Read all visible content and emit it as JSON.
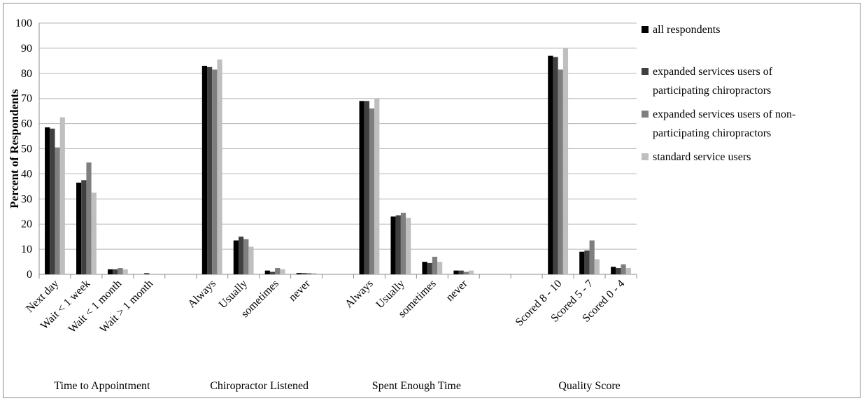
{
  "chart_data": {
    "type": "bar",
    "ylabel": "Percent of Respondents",
    "ylim": [
      0,
      100
    ],
    "yticks": [
      0,
      10,
      20,
      30,
      40,
      50,
      60,
      70,
      80,
      90,
      100
    ],
    "grid": true,
    "legend_position": "right",
    "categories": [
      "Next day",
      "Wait < 1 week",
      "Wait < 1 month",
      "Wait > 1 month",
      "",
      "Always",
      "Usually",
      "sometimes",
      "never",
      "",
      "Always",
      "Usually",
      "sometimes",
      "never",
      "",
      "",
      "Scored 8 - 10",
      "Scored 5 - 7",
      "Scored 0 - 4"
    ],
    "groups": [
      {
        "label": "Time to Appointment",
        "start": 0,
        "end": 3
      },
      {
        "label": "Chiropractor Listened",
        "start": 5,
        "end": 8
      },
      {
        "label": "Spent Enough Time",
        "start": 10,
        "end": 13
      },
      {
        "label": "Quality Score",
        "start": 16,
        "end": 18
      }
    ],
    "series": [
      {
        "name": "all respondents",
        "color": "#000000",
        "values": [
          58.5,
          36.5,
          2,
          0,
          null,
          83,
          13.5,
          1.5,
          0.5,
          null,
          69,
          23,
          5,
          1.5,
          null,
          null,
          87,
          9,
          3
        ]
      },
      {
        "name": "expanded services users of participating chiropractors",
        "color": "#404040",
        "values": [
          58,
          37.5,
          2,
          0.5,
          null,
          82.5,
          15,
          1,
          0.5,
          null,
          69,
          23.5,
          4.5,
          1.5,
          null,
          null,
          86.5,
          9.5,
          2.5
        ]
      },
      {
        "name": "expanded services users of non-participating chiropractors",
        "color": "#7f7f7f",
        "values": [
          50.5,
          44.5,
          2.5,
          0,
          null,
          81.5,
          14,
          2.5,
          0.5,
          null,
          66,
          24.5,
          7,
          1,
          null,
          null,
          81.5,
          13.5,
          4
        ]
      },
      {
        "name": "standard service users",
        "color": "#bfbfbf",
        "values": [
          62.5,
          32.5,
          2,
          0,
          null,
          85.5,
          11,
          2,
          0.5,
          null,
          70,
          22.5,
          5,
          1.5,
          null,
          null,
          90,
          6,
          2.5
        ]
      }
    ]
  }
}
